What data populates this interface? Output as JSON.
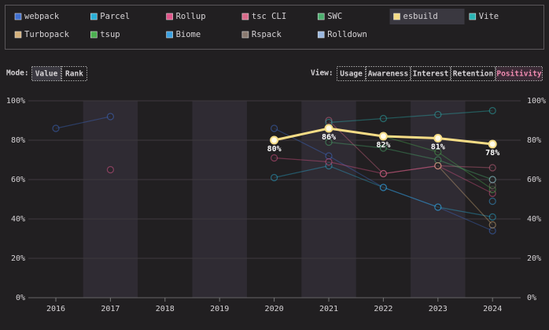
{
  "chart_data": {
    "type": "line",
    "categories": [
      "2016",
      "2017",
      "2018",
      "2019",
      "2020",
      "2021",
      "2022",
      "2023",
      "2024"
    ],
    "ylim": [
      0,
      100
    ],
    "yticks": [
      {
        "value": 0,
        "label": "0%"
      },
      {
        "value": 20,
        "label": "20%"
      },
      {
        "value": 40,
        "label": "40%"
      },
      {
        "value": 60,
        "label": "60%"
      },
      {
        "value": 80,
        "label": "80%"
      },
      {
        "value": 100,
        "label": "100%"
      }
    ],
    "grid": true,
    "series": [
      {
        "name": "webpack",
        "color": "#3f6fd0",
        "values": [
          86,
          92,
          null,
          null,
          86,
          72,
          56,
          46,
          34
        ]
      },
      {
        "name": "Parcel",
        "color": "#2ab0d8",
        "values": [
          null,
          null,
          null,
          null,
          61,
          67,
          56,
          46,
          41
        ]
      },
      {
        "name": "Rollup",
        "color": "#e0558a",
        "values": [
          null,
          65,
          null,
          null,
          71,
          69,
          63,
          67,
          53
        ]
      },
      {
        "name": "tsc CLI",
        "color": "#d96a8a",
        "values": [
          null,
          null,
          null,
          null,
          null,
          90,
          63,
          67,
          66
        ]
      },
      {
        "name": "SWC",
        "color": "#4caf6e",
        "values": [
          null,
          null,
          null,
          null,
          null,
          79,
          76,
          70,
          60
        ]
      },
      {
        "name": "esbuild",
        "color": "#f5dc86",
        "highlighted": true,
        "values": [
          null,
          null,
          null,
          null,
          80,
          86,
          82,
          81,
          78
        ],
        "value_labels": [
          null,
          null,
          null,
          null,
          "80%",
          "86%",
          "82%",
          "81%",
          "78%"
        ]
      },
      {
        "name": "Vite",
        "color": "#2bb5b5",
        "values": [
          null,
          null,
          null,
          null,
          null,
          89,
          91,
          93,
          95
        ]
      },
      {
        "name": "Turbopack",
        "color": "#d4b07a",
        "values": [
          null,
          null,
          null,
          null,
          null,
          null,
          null,
          67,
          37
        ]
      },
      {
        "name": "tsup",
        "color": "#4caf50",
        "values": [
          null,
          null,
          null,
          null,
          null,
          null,
          82,
          74,
          55
        ]
      },
      {
        "name": "Biome",
        "color": "#3aa0e0",
        "values": [
          null,
          null,
          null,
          null,
          null,
          null,
          null,
          null,
          49
        ]
      },
      {
        "name": "Rspack",
        "color": "#8a7a70",
        "values": [
          null,
          null,
          null,
          null,
          null,
          null,
          null,
          null,
          57
        ]
      },
      {
        "name": "Rolldown",
        "color": "#9ab8e0",
        "values": [
          null,
          null,
          null,
          null,
          null,
          null,
          null,
          null,
          60
        ]
      }
    ]
  },
  "controls": {
    "mode_label": "Mode:",
    "mode_options": [
      "Value",
      "Rank"
    ],
    "mode_active": 0,
    "view_label": "View:",
    "view_options": [
      "Usage",
      "Awareness",
      "Interest",
      "Retention",
      "Positivity"
    ],
    "view_active": 4
  }
}
